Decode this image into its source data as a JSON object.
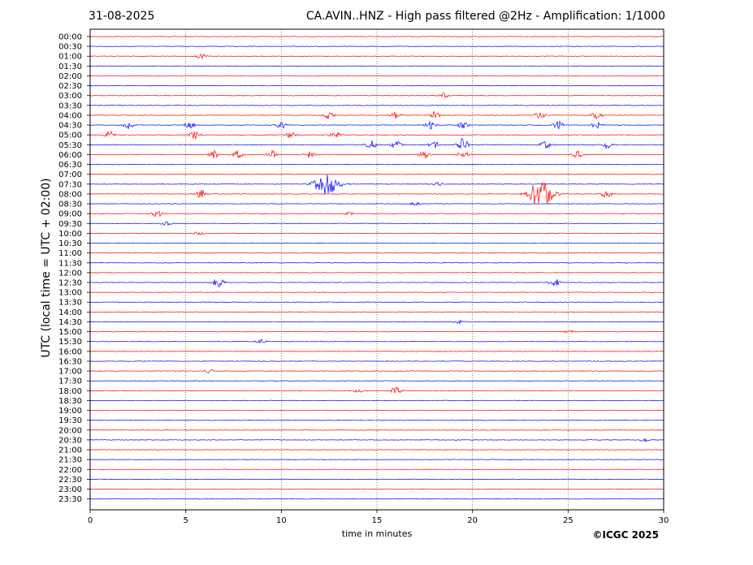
{
  "header": {
    "date": "31-08-2025",
    "title": "CA.AVIN..HNZ - High pass filtered @2Hz - Amplification: 1/1000"
  },
  "footer": {
    "copyright": "©ICGC 2025"
  },
  "chart_data": {
    "type": "line",
    "title": "CA.AVIN..HNZ - High pass filtered @2Hz - Amplification: 1/1000",
    "xlabel": "time in minutes",
    "ylabel": "UTC (local time = UTC + 02:00)",
    "xlim": [
      0,
      30
    ],
    "x_ticks": [
      0,
      5,
      10,
      15,
      20,
      25,
      30
    ],
    "vertical_gridlines": [
      5,
      10,
      15,
      20,
      25
    ],
    "trace_colors": [
      "#ff0000",
      "#0000ff"
    ],
    "rows": [
      "00:00",
      "00:30",
      "01:00",
      "01:30",
      "02:00",
      "02:30",
      "03:00",
      "03:30",
      "04:00",
      "04:30",
      "05:00",
      "05:30",
      "06:00",
      "06:30",
      "07:00",
      "07:30",
      "08:00",
      "08:30",
      "09:00",
      "09:30",
      "10:00",
      "10:30",
      "11:00",
      "11:30",
      "12:00",
      "12:30",
      "13:00",
      "13:30",
      "14:00",
      "14:30",
      "15:00",
      "15:30",
      "16:00",
      "16:30",
      "17:00",
      "17:30",
      "18:00",
      "18:30",
      "19:00",
      "19:30",
      "20:00",
      "20:30",
      "21:00",
      "21:30",
      "22:00",
      "22:30",
      "23:00",
      "23:30"
    ],
    "bursts": [
      {
        "row": "01:00",
        "min": 5.8,
        "amp": 0.2
      },
      {
        "row": "03:00",
        "min": 18.5,
        "amp": 0.25
      },
      {
        "row": "04:00",
        "min": 12.5,
        "amp": 0.35
      },
      {
        "row": "04:00",
        "min": 16.0,
        "amp": 0.3
      },
      {
        "row": "04:00",
        "min": 18.0,
        "amp": 0.35
      },
      {
        "row": "04:00",
        "min": 23.5,
        "amp": 0.35
      },
      {
        "row": "04:00",
        "min": 26.5,
        "amp": 0.3
      },
      {
        "row": "04:30",
        "min": 2.0,
        "amp": 0.35
      },
      {
        "row": "04:30",
        "min": 5.2,
        "amp": 0.35
      },
      {
        "row": "04:30",
        "min": 10.0,
        "amp": 0.3
      },
      {
        "row": "04:30",
        "min": 17.8,
        "amp": 0.35
      },
      {
        "row": "04:30",
        "min": 19.5,
        "amp": 0.35
      },
      {
        "row": "04:30",
        "min": 24.5,
        "amp": 0.35
      },
      {
        "row": "04:30",
        "min": 26.5,
        "amp": 0.35
      },
      {
        "row": "05:00",
        "min": 1.0,
        "amp": 0.35
      },
      {
        "row": "05:00",
        "min": 5.5,
        "amp": 0.35
      },
      {
        "row": "05:00",
        "min": 10.5,
        "amp": 0.3
      },
      {
        "row": "05:00",
        "min": 12.8,
        "amp": 0.3
      },
      {
        "row": "05:30",
        "min": 14.7,
        "amp": 0.4
      },
      {
        "row": "05:30",
        "min": 16.0,
        "amp": 0.35
      },
      {
        "row": "05:30",
        "min": 18.0,
        "amp": 0.35
      },
      {
        "row": "05:30",
        "min": 19.5,
        "amp": 0.55
      },
      {
        "row": "05:30",
        "min": 23.8,
        "amp": 0.35
      },
      {
        "row": "05:30",
        "min": 27.0,
        "amp": 0.35
      },
      {
        "row": "06:00",
        "min": 6.5,
        "amp": 0.35
      },
      {
        "row": "06:00",
        "min": 7.7,
        "amp": 0.35
      },
      {
        "row": "06:00",
        "min": 9.5,
        "amp": 0.35
      },
      {
        "row": "06:00",
        "min": 11.5,
        "amp": 0.3
      },
      {
        "row": "06:00",
        "min": 17.5,
        "amp": 0.35
      },
      {
        "row": "06:00",
        "min": 19.5,
        "amp": 0.35
      },
      {
        "row": "06:00",
        "min": 25.5,
        "amp": 0.3
      },
      {
        "row": "07:30",
        "min": 12.4,
        "amp": 1.0
      },
      {
        "row": "07:30",
        "min": 18.2,
        "amp": 0.15
      },
      {
        "row": "08:00",
        "min": 5.8,
        "amp": 0.4
      },
      {
        "row": "08:00",
        "min": 23.6,
        "amp": 1.2
      },
      {
        "row": "08:00",
        "min": 27.0,
        "amp": 0.35
      },
      {
        "row": "08:30",
        "min": 17.0,
        "amp": 0.15
      },
      {
        "row": "09:00",
        "min": 3.5,
        "amp": 0.3
      },
      {
        "row": "09:00",
        "min": 13.5,
        "amp": 0.15
      },
      {
        "row": "09:30",
        "min": 4.0,
        "amp": 0.15
      },
      {
        "row": "10:00",
        "min": 5.7,
        "amp": 0.15
      },
      {
        "row": "12:30",
        "min": 6.7,
        "amp": 0.45
      },
      {
        "row": "12:30",
        "min": 24.3,
        "amp": 0.35
      },
      {
        "row": "14:30",
        "min": 19.3,
        "amp": 0.15
      },
      {
        "row": "15:00",
        "min": 25.1,
        "amp": 0.15
      },
      {
        "row": "15:30",
        "min": 9.0,
        "amp": 0.2
      },
      {
        "row": "17:00",
        "min": 6.2,
        "amp": 0.2
      },
      {
        "row": "18:00",
        "min": 16.0,
        "amp": 0.35
      },
      {
        "row": "18:00",
        "min": 14.0,
        "amp": 0.15
      },
      {
        "row": "20:30",
        "min": 29.0,
        "amp": 0.15
      }
    ]
  }
}
